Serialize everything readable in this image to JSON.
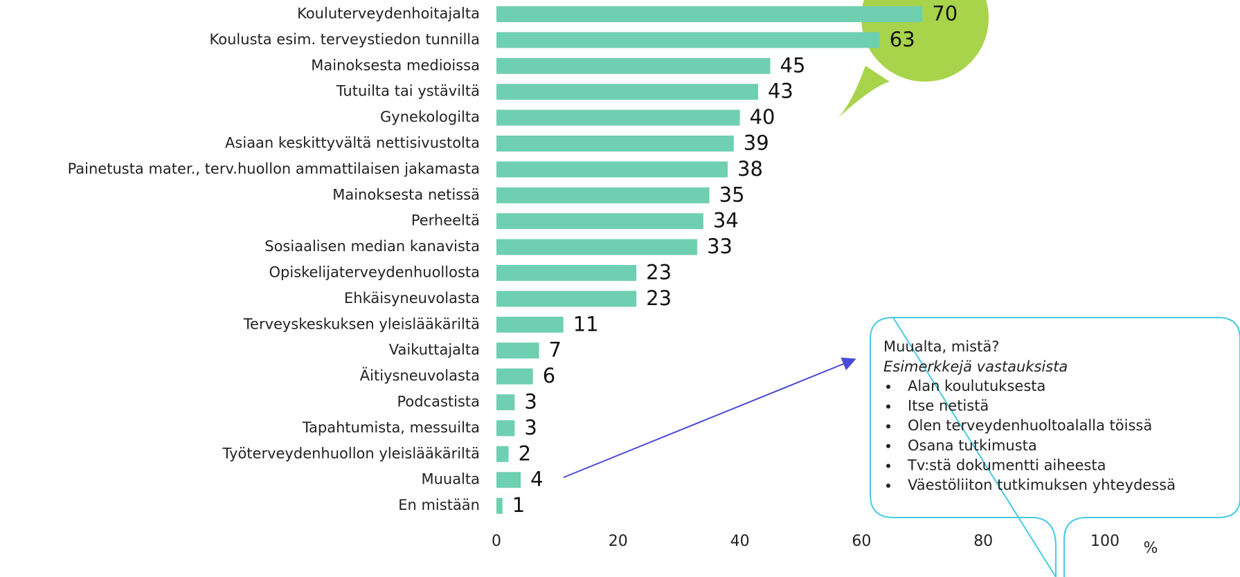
{
  "chart_data": {
    "type": "hbar",
    "categories": [
      "Kouluterveydenhoitajalta",
      "Koulusta esim. terveystiedon tunnilla",
      "Mainoksesta medioissa",
      "Tutuilta tai ystäviltä",
      "Gynekologilta",
      "Asiaan keskittyvältä nettisivustolta",
      "Painetusta mater., terv.huollon ammattilaisen jakamasta",
      "Mainoksesta netissä",
      "Perheeltä",
      "Sosiaalisen median kanavista",
      "Opiskelijaterveydenhuollosta",
      "Ehkäisyneuvolasta",
      "Terveyskeskuksen yleislääkäriltä",
      "Vaikuttajalta",
      "Äitiysneuvolasta",
      "Podcastista",
      "Tapahtumista, messuilta",
      "Työterveydenhuollon yleislääkäriltä",
      "Muualta",
      "En mistään"
    ],
    "values": [
      70,
      63,
      45,
      43,
      40,
      39,
      38,
      35,
      34,
      33,
      23,
      23,
      11,
      7,
      6,
      3,
      3,
      2,
      4,
      1
    ],
    "color": "#6fcfb1",
    "xlim": [
      0,
      100
    ],
    "xticks": [
      0,
      20,
      40,
      60,
      80,
      100
    ],
    "x_unit": "%",
    "annotation": {
      "title": "Muualta, mistä?",
      "subtitle": "Esimerkkejä vastauksista",
      "items": [
        "Alan koulutuksesta",
        "Itse netistä",
        "Olen terveydenhuoltoalalla töissä",
        "Osana tutkimusta",
        "Tv:stä dokumentti aiheesta",
        "Väestöliiton tutkimuksen yhteydessä"
      ]
    }
  }
}
